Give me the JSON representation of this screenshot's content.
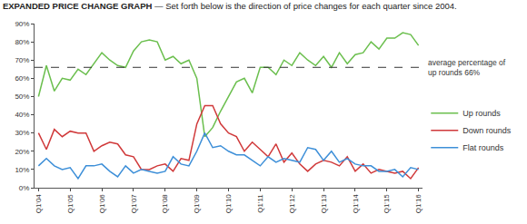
{
  "chart_data": {
    "type": "line",
    "title": "EXPANDED PRICE CHANGE GRAPH",
    "subtitle": "— Set forth below is the direction of price changes for each quarter since 2004.",
    "categories": [
      "Q1'04",
      null,
      null,
      null,
      "Q1'05",
      null,
      null,
      null,
      "Q1'06",
      null,
      null,
      null,
      "Q1'07",
      null,
      null,
      null,
      "Q1'08",
      null,
      null,
      null,
      "Q1'09",
      null,
      null,
      null,
      "Q1'10",
      null,
      null,
      null,
      "Q1'11",
      null,
      null,
      null,
      "Q1'12",
      null,
      null,
      null,
      "Q1'13",
      null,
      null,
      null,
      "Q1'14",
      null,
      null,
      null,
      "Q1'15",
      null,
      null,
      null,
      "Q1'16"
    ],
    "series": [
      {
        "name": "Up rounds",
        "color": "#6bbf4e",
        "values": [
          50,
          67,
          53,
          60,
          59,
          65,
          62,
          68,
          74,
          70,
          67,
          66,
          75,
          80,
          81,
          80,
          70,
          72,
          68,
          70,
          60,
          28,
          33,
          42,
          50,
          58,
          60,
          52,
          66,
          66,
          62,
          70,
          67,
          74,
          70,
          67,
          72,
          66,
          74,
          68,
          73,
          74,
          80,
          76,
          82,
          82,
          85,
          84,
          78
        ]
      },
      {
        "name": "Down rounds",
        "color": "#d0393a",
        "values": [
          30,
          21,
          32,
          28,
          31,
          30,
          30,
          20,
          23,
          25,
          24,
          18,
          17,
          10,
          10,
          12,
          13,
          9,
          16,
          15,
          35,
          45,
          45,
          35,
          30,
          28,
          20,
          25,
          21,
          17,
          24,
          14,
          19,
          13,
          9,
          13,
          15,
          14,
          12,
          17,
          9,
          13,
          8,
          10,
          9,
          8,
          9,
          5,
          11
        ]
      },
      {
        "name": "Flat rounds",
        "color": "#3d8fd8",
        "values": [
          12,
          16,
          12,
          10,
          11,
          5,
          12,
          12,
          13,
          9,
          6,
          12,
          8,
          10,
          9,
          8,
          9,
          17,
          13,
          12,
          20,
          30,
          22,
          23,
          20,
          18,
          18,
          15,
          12,
          17,
          14,
          16,
          15,
          14,
          22,
          21,
          15,
          20,
          14,
          16,
          13,
          12,
          12,
          9,
          9,
          10,
          6,
          11,
          10
        ]
      }
    ],
    "ylim": [
      0,
      90
    ],
    "yticks": [
      {
        "value": 0,
        "label": "0%"
      },
      {
        "value": 10,
        "label": "10%"
      },
      {
        "value": 20,
        "label": "20%"
      },
      {
        "value": 30,
        "label": "30%"
      },
      {
        "value": 40,
        "label": "40%"
      },
      {
        "value": 50,
        "label": "50%"
      },
      {
        "value": 60,
        "label": "60%"
      },
      {
        "value": 70,
        "label": "70%"
      },
      {
        "value": 80,
        "label": "80%"
      },
      {
        "value": 90,
        "label": "90%"
      }
    ],
    "grid": false,
    "legend": "right",
    "annotations": [
      {
        "text": [
          "average percentage of",
          "up rounds 66%"
        ],
        "y": 66,
        "line_style": "dash"
      }
    ]
  }
}
